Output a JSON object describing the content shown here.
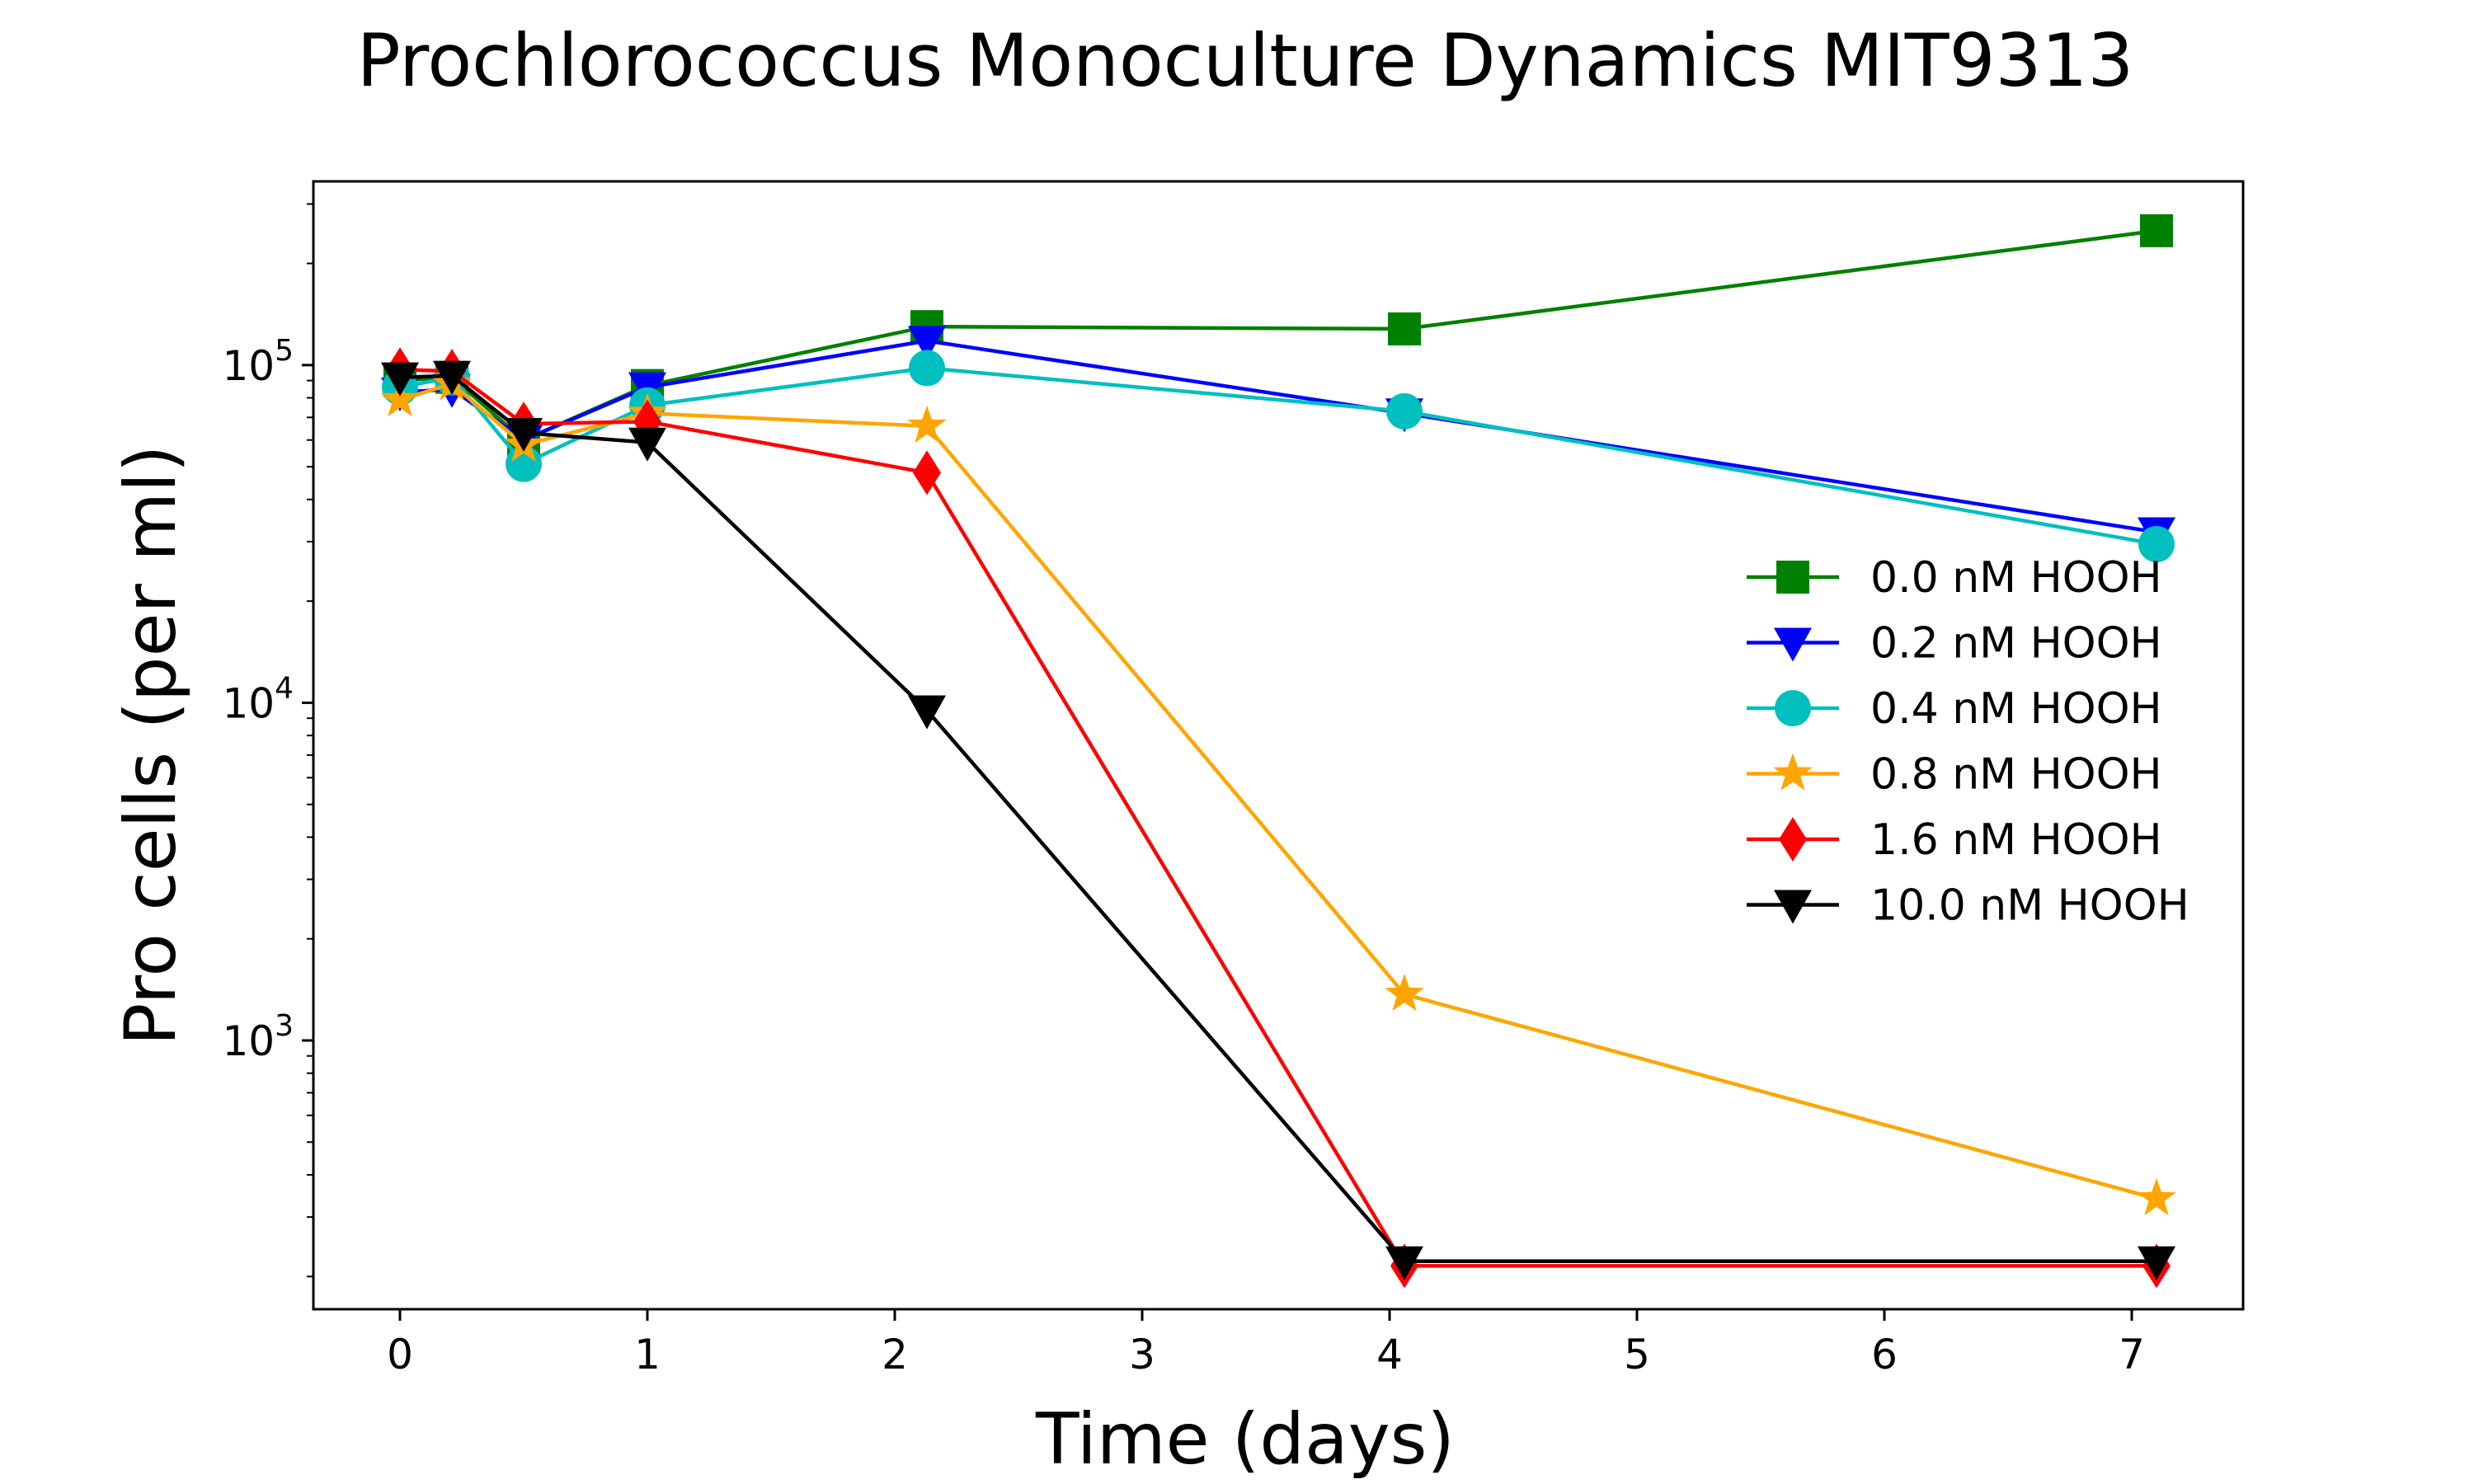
{
  "chart_data": {
    "type": "line",
    "title": "Prochlorococcus Monoculture Dynamics MIT9313",
    "xlabel": "Time (days)",
    "ylabel": "Pro cells (per ml)",
    "xlim": [
      -0.35,
      7.45
    ],
    "ylim": [
      160,
      350000
    ],
    "yscale": "log",
    "x_ticks": [
      0,
      1,
      2,
      3,
      4,
      5,
      6,
      7
    ],
    "y_ticks": [
      {
        "base": "10",
        "exp": "3",
        "value": 1000
      },
      {
        "base": "10",
        "exp": "4",
        "value": 10000
      },
      {
        "base": "10",
        "exp": "5",
        "value": 100000
      }
    ],
    "grid": false,
    "legend_position": "center-right",
    "series": [
      {
        "name": "0.0 nM HOOH",
        "color": "#008000",
        "marker": "square",
        "points": [
          [
            0,
            90000
          ],
          [
            0.21,
            92000
          ],
          [
            0.5,
            60000
          ],
          [
            1.0,
            87000
          ],
          [
            2.13,
            130000
          ],
          [
            4.06,
            128000
          ],
          [
            7.1,
            250000
          ]
        ]
      },
      {
        "name": "0.2 nM HOOH",
        "color": "#0000ff",
        "marker": "triangle-down",
        "points": [
          [
            0,
            83000
          ],
          [
            0.21,
            85000
          ],
          [
            0.5,
            60000
          ],
          [
            1.0,
            86000
          ],
          [
            2.13,
            118000
          ],
          [
            4.06,
            72000
          ],
          [
            7.1,
            32000
          ]
        ]
      },
      {
        "name": "0.4 nM HOOH",
        "color": "#00bfbf",
        "marker": "circle",
        "points": [
          [
            0,
            86000
          ],
          [
            0.21,
            92000
          ],
          [
            0.5,
            51000
          ],
          [
            1.0,
            76000
          ],
          [
            2.13,
            98000
          ],
          [
            4.06,
            73000
          ],
          [
            7.1,
            29500
          ]
        ]
      },
      {
        "name": "0.8 nM HOOH",
        "color": "#ffa500",
        "marker": "star",
        "points": [
          [
            0,
            79000
          ],
          [
            0.21,
            88000
          ],
          [
            0.5,
            58000
          ],
          [
            1.0,
            72000
          ],
          [
            2.13,
            66000
          ],
          [
            4.06,
            1370
          ],
          [
            7.1,
            340
          ]
        ]
      },
      {
        "name": "1.6 nM HOOH",
        "color": "#ff0000",
        "marker": "diamond",
        "points": [
          [
            0,
            97000
          ],
          [
            0.21,
            96000
          ],
          [
            0.5,
            67000
          ],
          [
            1.0,
            68000
          ],
          [
            2.13,
            48000
          ],
          [
            4.06,
            215
          ],
          [
            7.1,
            215
          ]
        ]
      },
      {
        "name": "10.0 nM HOOH",
        "color": "#000000",
        "marker": "triangle-down",
        "points": [
          [
            0,
            92000
          ],
          [
            0.21,
            93000
          ],
          [
            0.5,
            63000
          ],
          [
            1.0,
            59000
          ],
          [
            2.13,
            9500
          ],
          [
            4.06,
            222
          ],
          [
            7.1,
            222
          ]
        ]
      }
    ]
  }
}
